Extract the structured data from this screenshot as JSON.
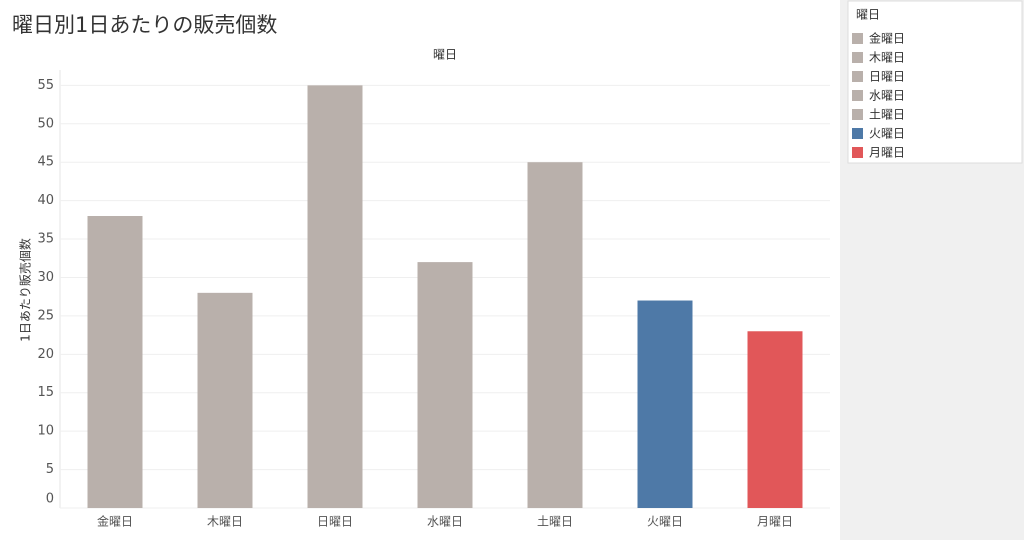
{
  "chart_data": {
    "type": "bar",
    "title": "曜日別1日あたりの販売個数",
    "column_header": "曜日",
    "y_label": "1日あたり販売個数",
    "categories": [
      "金曜日",
      "木曜日",
      "日曜日",
      "水曜日",
      "土曜日",
      "火曜日",
      "月曜日"
    ],
    "values": [
      38,
      28,
      55,
      32,
      45,
      27,
      23
    ],
    "colors": [
      "#b9b0ab",
      "#b9b0ab",
      "#b9b0ab",
      "#b9b0ab",
      "#b9b0ab",
      "#4e79a7",
      "#e15759"
    ],
    "ylim": [
      0,
      57
    ],
    "yticks": [
      0,
      5,
      10,
      15,
      20,
      25,
      30,
      35,
      40,
      45,
      50,
      55
    ],
    "grid": true,
    "legend_title": "曜日",
    "legend_position": "right"
  }
}
